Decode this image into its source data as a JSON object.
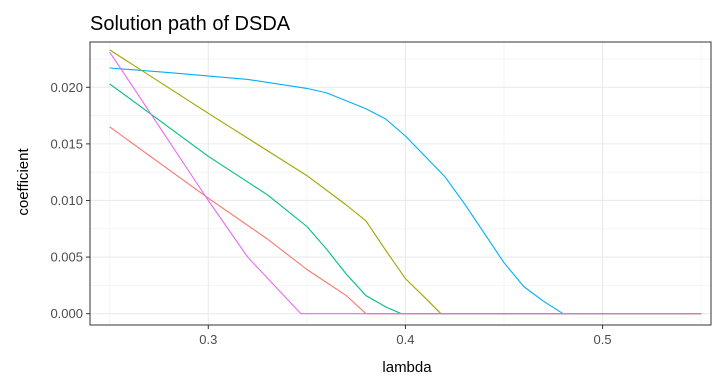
{
  "chart_data": {
    "type": "line",
    "title": "Solution path of DSDA",
    "xlabel": "lambda",
    "ylabel": "coefficient",
    "xlim": [
      0.24,
      0.555
    ],
    "ylim": [
      -0.001,
      0.024
    ],
    "grid": true,
    "legend": "none",
    "x_ticks": [
      0.3,
      0.4,
      0.5
    ],
    "x_tick_labels": [
      "0.3",
      "0.4",
      "0.5"
    ],
    "y_ticks": [
      0.0,
      0.005,
      0.01,
      0.015,
      0.02
    ],
    "y_tick_labels": [
      "0.000",
      "0.005",
      "0.010",
      "0.015",
      "0.020"
    ],
    "series": [
      {
        "color": "#00b0f6",
        "points": [
          [
            0.25,
            0.0217
          ],
          [
            0.28,
            0.0213
          ],
          [
            0.32,
            0.0207
          ],
          [
            0.35,
            0.0199
          ],
          [
            0.36,
            0.0195
          ],
          [
            0.38,
            0.0181
          ],
          [
            0.39,
            0.0172
          ],
          [
            0.4,
            0.0157
          ],
          [
            0.41,
            0.0139
          ],
          [
            0.42,
            0.0121
          ],
          [
            0.43,
            0.0097
          ],
          [
            0.44,
            0.0071
          ],
          [
            0.45,
            0.0045
          ],
          [
            0.46,
            0.0024
          ],
          [
            0.47,
            0.0011
          ],
          [
            0.48,
            0.0
          ],
          [
            0.55,
            0.0
          ]
        ]
      },
      {
        "color": "#a3a500",
        "points": [
          [
            0.25,
            0.0233
          ],
          [
            0.3,
            0.0177
          ],
          [
            0.35,
            0.0122
          ],
          [
            0.37,
            0.0096
          ],
          [
            0.38,
            0.0082
          ],
          [
            0.39,
            0.0056
          ],
          [
            0.4,
            0.0031
          ],
          [
            0.41,
            0.0014
          ],
          [
            0.418,
            0.0
          ],
          [
            0.55,
            0.0
          ]
        ]
      },
      {
        "color": "#00bf7d",
        "points": [
          [
            0.25,
            0.0203
          ],
          [
            0.3,
            0.0139
          ],
          [
            0.33,
            0.0105
          ],
          [
            0.35,
            0.0077
          ],
          [
            0.36,
            0.0057
          ],
          [
            0.37,
            0.0035
          ],
          [
            0.38,
            0.0016
          ],
          [
            0.39,
            0.0006
          ],
          [
            0.398,
            0.0
          ],
          [
            0.55,
            0.0
          ]
        ]
      },
      {
        "color": "#f8766d",
        "points": [
          [
            0.25,
            0.0165
          ],
          [
            0.3,
            0.0102
          ],
          [
            0.33,
            0.0066
          ],
          [
            0.35,
            0.0039
          ],
          [
            0.37,
            0.0016
          ],
          [
            0.38,
            0.0
          ],
          [
            0.55,
            0.0
          ]
        ]
      },
      {
        "color": "#e76bf3",
        "points": [
          [
            0.25,
            0.0231
          ],
          [
            0.26,
            0.0205
          ],
          [
            0.3,
            0.01
          ],
          [
            0.32,
            0.005
          ],
          [
            0.347,
            0.0
          ],
          [
            0.55,
            0.0
          ]
        ]
      }
    ]
  }
}
